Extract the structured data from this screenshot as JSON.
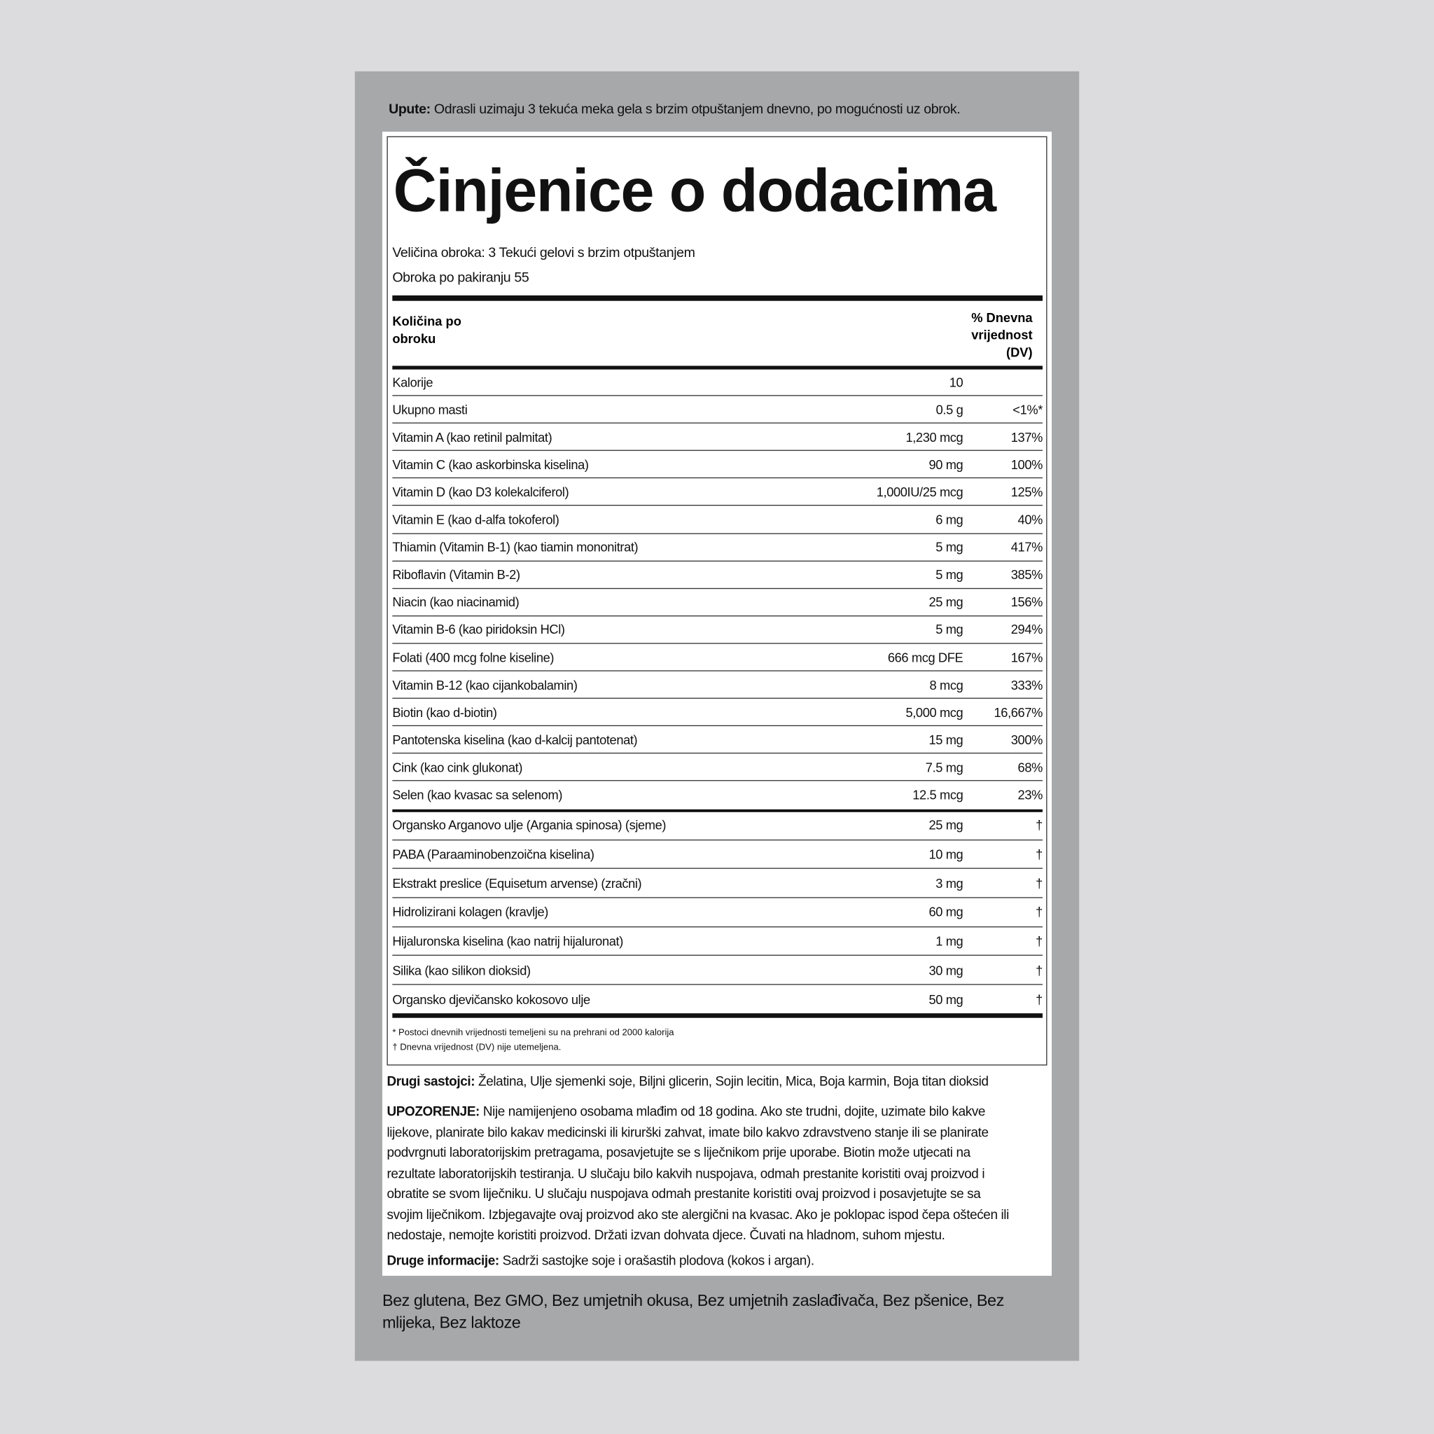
{
  "directions": {
    "label": "Upute:",
    "text": "Odrasli uzimaju 3 tekuća meka gela s brzim otpuštanjem dnevno, po mogućnosti uz obrok."
  },
  "facts": {
    "title": "Činjenice o dodacima",
    "serving_size": "Veličina obroka: 3 Tekući gelovi s brzim otpuštanjem",
    "servings": "Obroka po pakiranju 55",
    "header_amount": "Količina po obroku",
    "header_dv": "% Dnevna vrijednost (DV)",
    "rows": [
      [
        "Kalorije",
        "10",
        ""
      ],
      [
        "Ukupno masti",
        "0.5 g",
        "<1%*"
      ],
      [
        "Vitamin A (kao retinil palmitat)",
        "1,230 mcg",
        "137%"
      ],
      [
        "Vitamin C (kao askorbinska kiselina)",
        "90 mg",
        "100%"
      ],
      [
        "Vitamin D (kao D3 kolekalciferol)",
        "1,000IU/25 mcg",
        "125%"
      ],
      [
        "Vitamin E (kao d-alfa tokoferol)",
        "6 mg",
        "40%"
      ],
      [
        "Thiamin (Vitamin B-1) (kao tiamin mononitrat)",
        "5 mg",
        "417%"
      ],
      [
        "Riboflavin (Vitamin B-2)",
        "5 mg",
        "385%"
      ],
      [
        "Niacin (kao niacinamid)",
        "25 mg",
        "156%"
      ],
      [
        "Vitamin B-6 (kao piridoksin HCl)",
        "5 mg",
        "294%"
      ],
      [
        "Folati (400 mcg folne kiseline)",
        "666 mcg DFE",
        "167%"
      ],
      [
        "Vitamin B-12 (kao cijankobalamin)",
        "8 mcg",
        "333%"
      ],
      [
        "Biotin (kao d-biotin)",
        "5,000 mcg",
        "16,667%"
      ],
      [
        "Pantotenska kiselina (kao d-kalcij pantotenat)",
        "15 mg",
        "300%"
      ],
      [
        "Cink (kao cink glukonat)",
        "7.5 mg",
        "68%"
      ],
      [
        "Selen (kao kvasac sa selenom)",
        "12.5 mcg",
        "23%"
      ]
    ],
    "rows2": [
      [
        "Organsko Arganovo ulje (Argania spinosa) (sjeme)",
        "25 mg",
        "†"
      ],
      [
        "PABA (Paraaminobenzoična kiselina)",
        "10 mg",
        "†"
      ],
      [
        "Ekstrakt preslice (Equisetum arvense) (zračni)",
        "3 mg",
        "†"
      ],
      [
        "Hidrolizirani kolagen (kravlje)",
        "60 mg",
        "†"
      ],
      [
        "Hijaluronska kiselina (kao natrij hijaluronat)",
        "1 mg",
        "†"
      ],
      [
        "Silika (kao silikon dioksid)",
        "30 mg",
        "†"
      ],
      [
        "Organsko djevičansko kokosovo ulje",
        "50 mg",
        "†"
      ]
    ],
    "footnotes": [
      "* Postoci dnevnih vrijednosti temeljeni su na prehrani od 2000 kalorija",
      "† Dnevna vrijednost (DV) nije utemeljena."
    ]
  },
  "other_ingredients": {
    "label": "Drugi sastojci:",
    "text": "Želatina, Ulje sjemenki soje, Biljni glicerin, Sojin lecitin, Mica, Boja karmin, Boja titan dioksid"
  },
  "warning": {
    "label": "UPOZORENJE:",
    "text": "Nije namijenjeno osobama mlađim od 18 godina. Ako ste trudni, dojite, uzimate bilo kakve lijekove, planirate bilo kakav medicinski ili kirurški zahvat, imate bilo kakvo zdravstveno stanje ili se planirate podvrgnuti laboratorijskim pretragama, posavjetujte se s liječnikom prije uporabe. Biotin može utjecati na rezultate laboratorijskih testiranja. U slučaju bilo kakvih nuspojava, odmah prestanite koristiti ovaj proizvod i obratite se svom liječniku. U slučaju nuspojava odmah prestanite koristiti ovaj proizvod i posavjetujte se sa svojim liječnikom. Izbjegavajte ovaj proizvod ako ste alergični na kvasac. Ako je poklopac ispod čepa oštećen ili nedostaje, nemojte koristiti proizvod. Držati izvan dohvata djece. Čuvati na hladnom, suhom mjestu."
  },
  "other_info": {
    "label": "Druge informacije:",
    "text": "Sadrži sastojke soje i orašastih plodova (kokos i argan)."
  },
  "free_from": "Bez glutena, Bez GMO, Bez umjetnih okusa, Bez umjetnih zaslađivača, Bez pšenice, Bez mlijeka, Bez laktoze"
}
